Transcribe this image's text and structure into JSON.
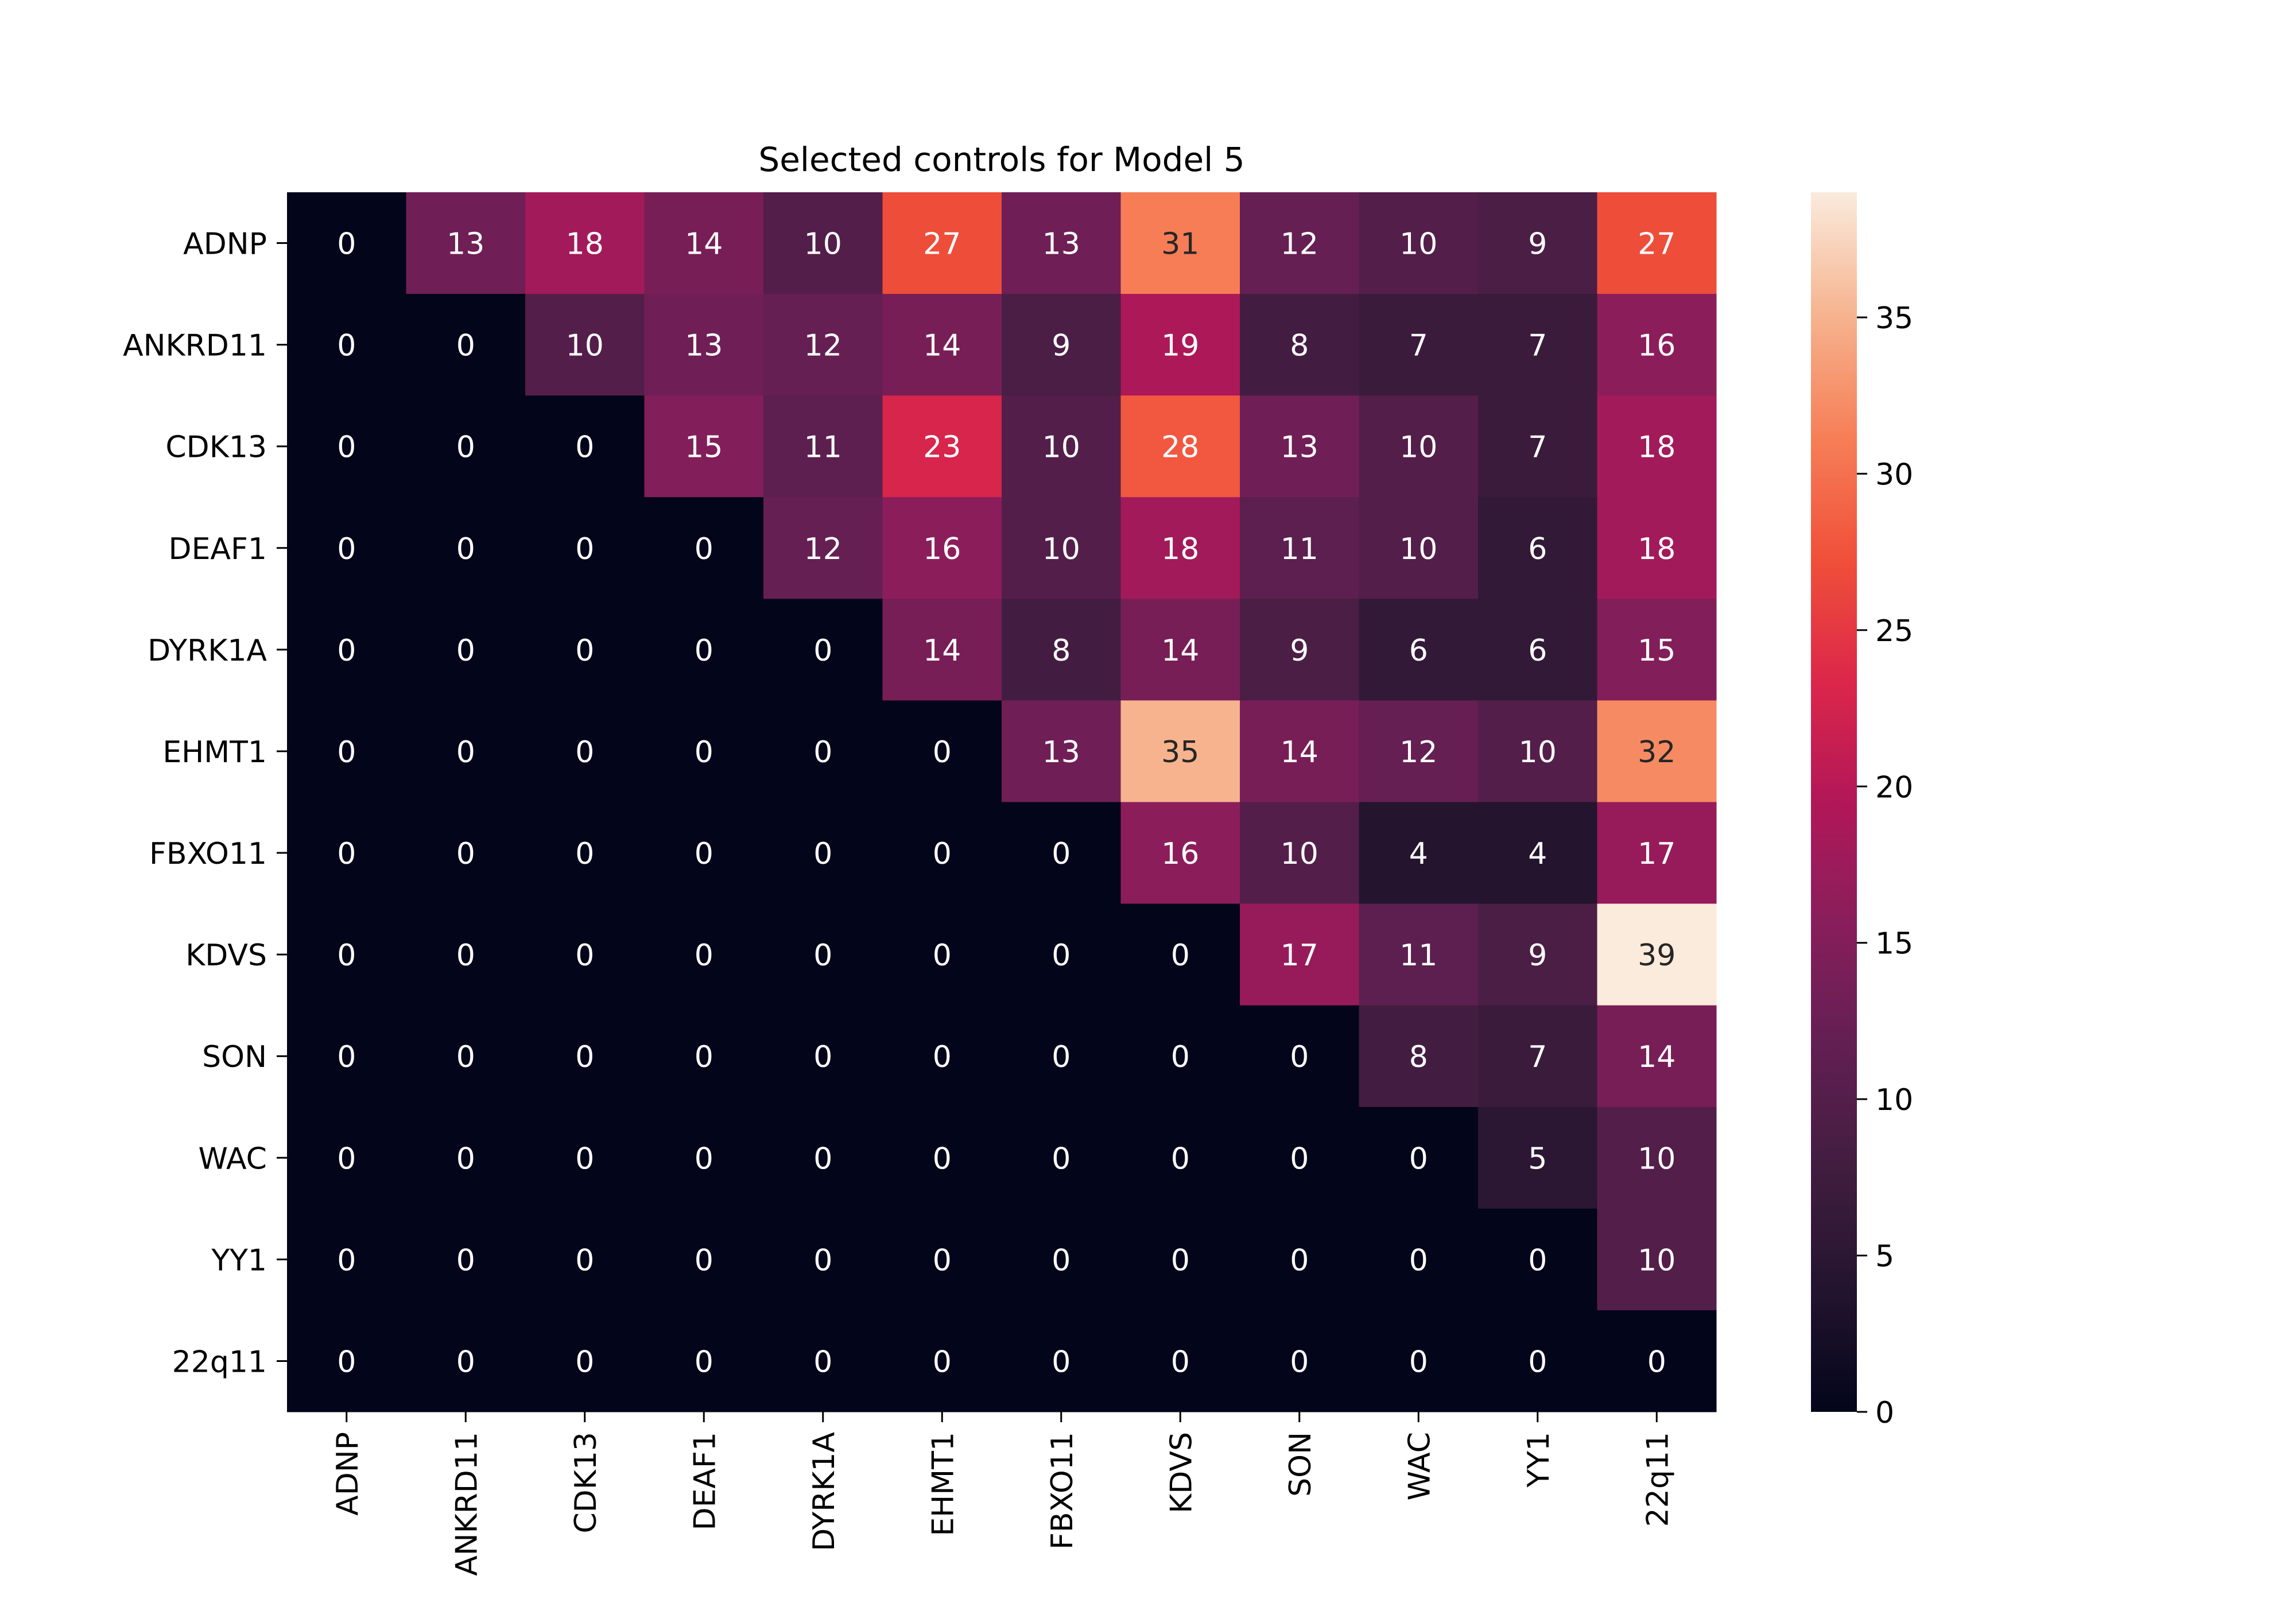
{
  "chart_data": {
    "type": "heatmap",
    "title": "Selected controls for Model 5",
    "xlabel": "",
    "ylabel": "",
    "x_categories": [
      "ADNP",
      "ANKRD11",
      "CDK13",
      "DEAF1",
      "DYRK1A",
      "EHMT1",
      "FBXO11",
      "KDVS",
      "SON",
      "WAC",
      "YY1",
      "22q11"
    ],
    "y_categories": [
      "ADNP",
      "ANKRD11",
      "CDK13",
      "DEAF1",
      "DYRK1A",
      "EHMT1",
      "FBXO11",
      "KDVS",
      "SON",
      "WAC",
      "YY1",
      "22q11"
    ],
    "values": [
      [
        0,
        13,
        18,
        14,
        10,
        27,
        13,
        31,
        12,
        10,
        9,
        27
      ],
      [
        0,
        0,
        10,
        13,
        12,
        14,
        9,
        19,
        8,
        7,
        7,
        16
      ],
      [
        0,
        0,
        0,
        15,
        11,
        23,
        10,
        28,
        13,
        10,
        7,
        18
      ],
      [
        0,
        0,
        0,
        0,
        12,
        16,
        10,
        18,
        11,
        10,
        6,
        18
      ],
      [
        0,
        0,
        0,
        0,
        0,
        14,
        8,
        14,
        9,
        6,
        6,
        15
      ],
      [
        0,
        0,
        0,
        0,
        0,
        0,
        13,
        35,
        14,
        12,
        10,
        32
      ],
      [
        0,
        0,
        0,
        0,
        0,
        0,
        0,
        16,
        10,
        4,
        4,
        17
      ],
      [
        0,
        0,
        0,
        0,
        0,
        0,
        0,
        0,
        17,
        11,
        9,
        39
      ],
      [
        0,
        0,
        0,
        0,
        0,
        0,
        0,
        0,
        0,
        8,
        7,
        14
      ],
      [
        0,
        0,
        0,
        0,
        0,
        0,
        0,
        0,
        0,
        0,
        5,
        10
      ],
      [
        0,
        0,
        0,
        0,
        0,
        0,
        0,
        0,
        0,
        0,
        0,
        10
      ],
      [
        0,
        0,
        0,
        0,
        0,
        0,
        0,
        0,
        0,
        0,
        0,
        0
      ]
    ],
    "colorbar": {
      "range": [
        0,
        39
      ],
      "ticks": [
        0,
        5,
        10,
        15,
        20,
        25,
        30,
        35
      ],
      "colormap": "rocket"
    },
    "annotations": true,
    "grid": false
  }
}
